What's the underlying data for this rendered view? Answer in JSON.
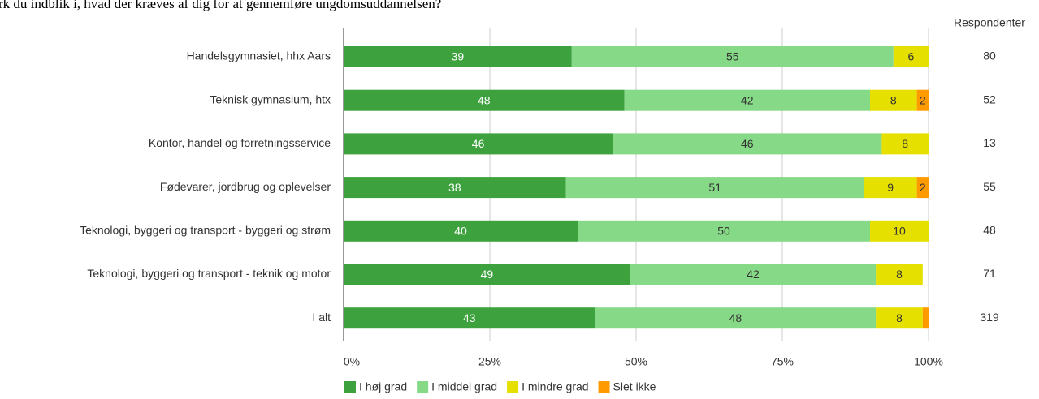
{
  "chart_data": {
    "type": "stacked_bar_horizontal",
    "title": "rk du indblik i, hvad der kræves af dig for at gennemføre ungdomsuddannelsen?",
    "categories": [
      "Handelsgymnasiet, hhx Aars",
      "Teknisk gymnasium, htx",
      "Kontor, handel og forretningsservice",
      "Fødevarer, jordbrug og oplevelser",
      "Teknologi, byggeri og transport - byggeri og strøm",
      "Teknologi, byggeri og transport - teknik og motor",
      "I alt"
    ],
    "series": [
      {
        "name": "I høj grad",
        "color": "#3da23d",
        "values": [
          39,
          48,
          46,
          38,
          40,
          49,
          43
        ]
      },
      {
        "name": "I middel grad",
        "color": "#86d986",
        "values": [
          55,
          42,
          46,
          51,
          50,
          42,
          48
        ]
      },
      {
        "name": "I mindre grad",
        "color": "#e6e000",
        "values": [
          6,
          8,
          8,
          9,
          10,
          8,
          8
        ]
      },
      {
        "name": "Slet ikke",
        "color": "#ff9a00",
        "values": [
          null,
          2,
          null,
          2,
          null,
          null,
          1
        ],
        "value_labels": [
          null,
          "2",
          null,
          "2",
          null,
          null,
          null
        ]
      }
    ],
    "xlim": [
      0,
      100
    ],
    "xticks": [
      {
        "value": 0,
        "label": "0%"
      },
      {
        "value": 25,
        "label": "25%"
      },
      {
        "value": 50,
        "label": "50%"
      },
      {
        "value": 75,
        "label": "75%"
      },
      {
        "value": 100,
        "label": "100%"
      }
    ],
    "grid": true,
    "legend": "bottom",
    "respondents_label": "Respondenter",
    "respondents": [
      80,
      52,
      13,
      55,
      48,
      71,
      319
    ]
  }
}
